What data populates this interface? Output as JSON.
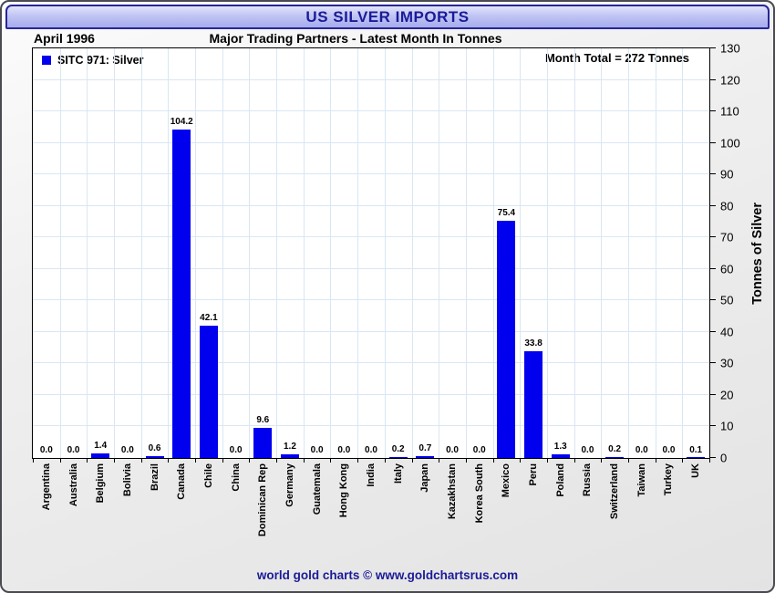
{
  "window": {
    "title": "US SILVER IMPORTS",
    "footer": "world gold charts © www.goldchartsrus.com"
  },
  "header": {
    "period": "April 1996",
    "subtitle": "Major Trading Partners - Latest Month In Tonnes",
    "month_total": "Month Total = 272 Tonnes"
  },
  "legend": {
    "series_label": "SITC 971: Silver"
  },
  "colors": {
    "bar": "#0000ee",
    "grid": "#d9e7f3",
    "title_text": "#1b1b97"
  },
  "chart_data": {
    "type": "bar",
    "title": "US SILVER IMPORTS",
    "subtitle": "Major Trading Partners - Latest Month In Tonnes",
    "period": "April 1996",
    "month_total_label": "Month Total = 272 Tonnes",
    "month_total_tonnes": 272,
    "categories": [
      "Argentina",
      "Australia",
      "Belgium",
      "Bolivia",
      "Brazil",
      "Canada",
      "Chile",
      "China",
      "Dominican Rep",
      "Germany",
      "Guatemala",
      "Hong Kong",
      "India",
      "Italy",
      "Japan",
      "Kazakhstan",
      "Korea South",
      "Mexico",
      "Peru",
      "Poland",
      "Russia",
      "Switzerland",
      "Taiwan",
      "Turkey",
      "UK"
    ],
    "values": [
      0.0,
      0.0,
      1.4,
      0.0,
      0.6,
      104.2,
      42.1,
      0.0,
      9.6,
      1.2,
      0.0,
      0.0,
      0.0,
      0.2,
      0.7,
      0.0,
      0.0,
      75.4,
      33.8,
      1.3,
      0.0,
      0.2,
      0.0,
      0.0,
      0.1
    ],
    "xlabel": "",
    "ylabel": "Tonnes of Silver",
    "ylim": [
      0,
      130
    ],
    "ytick_step": 10,
    "yaxis_side": "right",
    "grid": true,
    "value_labels": true,
    "legend_entries": [
      "SITC 971: Silver"
    ],
    "legend_position": "top-left"
  }
}
